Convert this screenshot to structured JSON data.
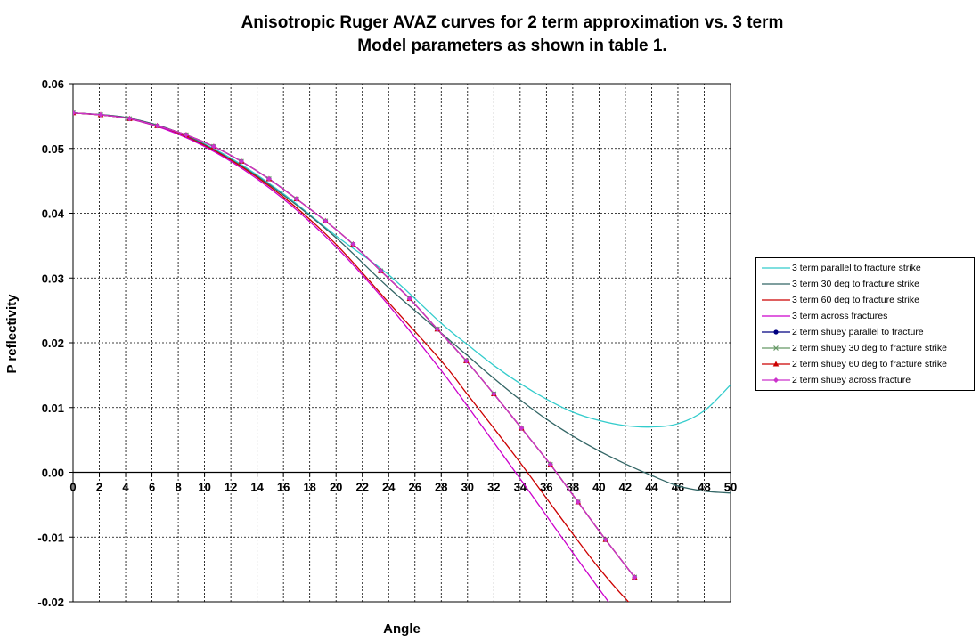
{
  "chart_data": {
    "type": "line",
    "title": [
      "Anisotropic Ruger AVAZ curves for 2  term approximation vs. 3 term",
      "Model parameters as shown in table 1."
    ],
    "xlabel": "Angle",
    "ylabel": "P reflectivity",
    "xlim": [
      0,
      50
    ],
    "ylim": [
      -0.02,
      0.06
    ],
    "x_ticks": [
      "0",
      "2",
      "4",
      "6",
      "8",
      "10",
      "12",
      "14",
      "16",
      "18",
      "20",
      "22",
      "24",
      "26",
      "28",
      "30",
      "32",
      "34",
      "36",
      "38",
      "40",
      "42",
      "44",
      "46",
      "48",
      "50"
    ],
    "y_ticks": [
      "0.06",
      "0.05",
      "0.04",
      "0.03",
      "0.02",
      "0.01",
      "0.00",
      "-0.01",
      "-0.02"
    ],
    "grid": true,
    "legend_position": "right",
    "series": [
      {
        "name": "3 term parallel to fracture strike",
        "color": "#33cccc",
        "marker": "none",
        "x": [
          0,
          4,
          8,
          12,
          16,
          20,
          24,
          28,
          30,
          32,
          34,
          36,
          38,
          40,
          42,
          44,
          46,
          48,
          50
        ],
        "y": [
          0.0555,
          0.0548,
          0.0525,
          0.0485,
          0.043,
          0.0365,
          0.0305,
          0.023,
          0.0197,
          0.0165,
          0.0137,
          0.0113,
          0.0093,
          0.008,
          0.0072,
          0.007,
          0.0075,
          0.0095,
          0.0135
        ]
      },
      {
        "name": "3 term 30 deg to fracture strike",
        "color": "#336666",
        "marker": "none",
        "x": [
          0,
          4,
          8,
          12,
          16,
          20,
          24,
          28,
          30,
          32,
          34,
          36,
          38,
          40,
          42,
          44,
          46,
          48,
          50
        ],
        "y": [
          0.0555,
          0.0548,
          0.0525,
          0.0483,
          0.0428,
          0.0362,
          0.0285,
          0.0215,
          0.018,
          0.0145,
          0.0112,
          0.0082,
          0.0056,
          0.0033,
          0.0013,
          -0.0005,
          -0.0021,
          -0.0029,
          -0.0032
        ]
      },
      {
        "name": "3 term 60 deg to fracture strike",
        "color": "#cc0000",
        "marker": "none",
        "x": [
          0,
          4,
          8,
          12,
          16,
          20,
          24,
          28,
          30,
          32,
          34,
          36,
          38,
          40,
          42,
          44,
          45
        ],
        "y": [
          0.0555,
          0.0547,
          0.0523,
          0.0482,
          0.0425,
          0.0352,
          0.0262,
          0.0172,
          0.012,
          0.0068,
          0.0015,
          -0.004,
          -0.0095,
          -0.0148,
          -0.0195,
          -0.0235,
          -0.0255
        ]
      },
      {
        "name": "3 term across fractures",
        "color": "#cc00cc",
        "marker": "none",
        "x": [
          0,
          4,
          8,
          12,
          16,
          20,
          24,
          28,
          30,
          32,
          34,
          36,
          38,
          40,
          42,
          43
        ],
        "y": [
          0.0555,
          0.0547,
          0.0522,
          0.048,
          0.0422,
          0.0348,
          0.0258,
          0.0157,
          0.0102,
          0.0046,
          -0.001,
          -0.0067,
          -0.0124,
          -0.018,
          -0.0235,
          -0.026
        ]
      },
      {
        "name": "2 term shuey parallel to fracture",
        "color": "#000080",
        "marker": "circle",
        "x": [
          0,
          2.1,
          4.3,
          6.4,
          8.6,
          10.7,
          12.8,
          14.9,
          17,
          19.2,
          21.3,
          23.4,
          25.6,
          27.7,
          29.9,
          32,
          34.1,
          36.3,
          38.4,
          40.5,
          42.7
        ],
        "y": [
          0.0555,
          0.0552,
          0.0546,
          0.0535,
          0.0521,
          0.0503,
          0.048,
          0.0453,
          0.0422,
          0.0388,
          0.0352,
          0.0311,
          0.0268,
          0.0221,
          0.0172,
          0.0121,
          0.0068,
          0.0012,
          -0.0046,
          -0.0104,
          -0.0162
        ]
      },
      {
        "name": "2 term shuey 30 deg to fracture strike",
        "color": "#669966",
        "marker": "x",
        "x": [
          0,
          2.1,
          4.3,
          6.4,
          8.6,
          10.7,
          12.8,
          14.9,
          17,
          19.2,
          21.3,
          23.4,
          25.6,
          27.7,
          29.9,
          32,
          34.1,
          36.3,
          38.4,
          40.5,
          42.7
        ],
        "y": [
          0.0555,
          0.0552,
          0.0546,
          0.0535,
          0.0521,
          0.0503,
          0.048,
          0.0453,
          0.0422,
          0.0388,
          0.0352,
          0.0311,
          0.0268,
          0.0221,
          0.0172,
          0.0121,
          0.0068,
          0.0012,
          -0.0046,
          -0.0104,
          -0.0162
        ]
      },
      {
        "name": "2 term shuey 60 deg to fracture strike",
        "color": "#cc0000",
        "marker": "triangle",
        "x": [
          0,
          2.1,
          4.3,
          6.4,
          8.6,
          10.7,
          12.8,
          14.9,
          17,
          19.2,
          21.3,
          23.4,
          25.6,
          27.7,
          29.9,
          32,
          34.1,
          36.3,
          38.4,
          40.5,
          42.7
        ],
        "y": [
          0.0555,
          0.0552,
          0.0546,
          0.0535,
          0.0521,
          0.0503,
          0.048,
          0.0453,
          0.0422,
          0.0388,
          0.0352,
          0.0311,
          0.0268,
          0.0221,
          0.0172,
          0.0121,
          0.0068,
          0.0012,
          -0.0046,
          -0.0104,
          -0.0162
        ]
      },
      {
        "name": "2 term shuey across fracture",
        "color": "#cc33cc",
        "marker": "diamond",
        "x": [
          0,
          2.1,
          4.3,
          6.4,
          8.6,
          10.7,
          12.8,
          14.9,
          17,
          19.2,
          21.3,
          23.4,
          25.6,
          27.7,
          29.9,
          32,
          34.1,
          36.3,
          38.4,
          40.5,
          42.7
        ],
        "y": [
          0.0555,
          0.0552,
          0.0546,
          0.0535,
          0.0521,
          0.0503,
          0.048,
          0.0453,
          0.0422,
          0.0388,
          0.0352,
          0.0311,
          0.0268,
          0.0221,
          0.0172,
          0.0121,
          0.0068,
          0.0012,
          -0.0046,
          -0.0104,
          -0.0162
        ]
      }
    ]
  }
}
